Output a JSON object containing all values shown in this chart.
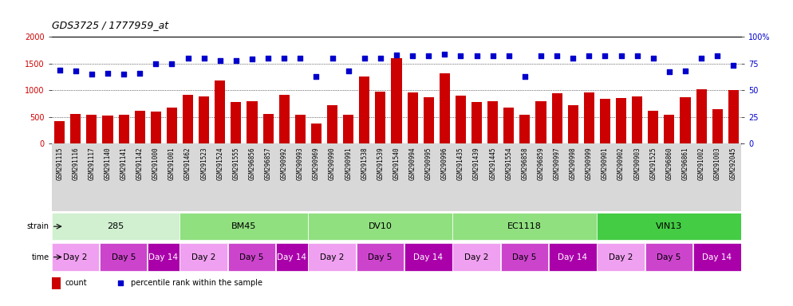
{
  "title": "GDS3725 / 1777959_at",
  "samples": [
    "GSM291115",
    "GSM291116",
    "GSM291117",
    "GSM291140",
    "GSM291141",
    "GSM291142",
    "GSM291000",
    "GSM291001",
    "GSM291462",
    "GSM291523",
    "GSM291524",
    "GSM291555",
    "GSM296856",
    "GSM296857",
    "GSM290992",
    "GSM290993",
    "GSM290969",
    "GSM290990",
    "GSM290991",
    "GSM291538",
    "GSM291539",
    "GSM291540",
    "GSM290994",
    "GSM290995",
    "GSM290996",
    "GSM291435",
    "GSM291439",
    "GSM291445",
    "GSM291554",
    "GSM296858",
    "GSM296859",
    "GSM290997",
    "GSM290998",
    "GSM290999",
    "GSM290901",
    "GSM290902",
    "GSM290903",
    "GSM291525",
    "GSM296860",
    "GSM296861",
    "GSM291002",
    "GSM291003",
    "GSM292045"
  ],
  "counts": [
    430,
    560,
    540,
    530,
    540,
    610,
    600,
    670,
    920,
    880,
    1180,
    780,
    790,
    560,
    920,
    550,
    380,
    720,
    540,
    1260,
    980,
    1600,
    960,
    870,
    1320,
    900,
    780,
    800,
    670,
    550,
    800,
    940,
    720,
    960,
    840,
    860,
    880,
    620,
    540,
    870,
    1020,
    650,
    1000
  ],
  "percentile_ranks": [
    69,
    68,
    65,
    66,
    65,
    66,
    75,
    75,
    80,
    80,
    78,
    78,
    79,
    80,
    80,
    80,
    63,
    80,
    68,
    80,
    80,
    83,
    82,
    82,
    84,
    82,
    82,
    82,
    82,
    63,
    82,
    82,
    80,
    82,
    82,
    82,
    82,
    80,
    67,
    68,
    80,
    82,
    73
  ],
  "strains": [
    {
      "label": "285",
      "start": 0,
      "end": 8,
      "color": "#d0f0d0"
    },
    {
      "label": "BM45",
      "start": 8,
      "end": 16,
      "color": "#90e080"
    },
    {
      "label": "DV10",
      "start": 16,
      "end": 25,
      "color": "#90e080"
    },
    {
      "label": "EC1118",
      "start": 25,
      "end": 34,
      "color": "#90e080"
    },
    {
      "label": "VIN13",
      "start": 34,
      "end": 43,
      "color": "#44cc44"
    }
  ],
  "time_groups": [
    {
      "label": "Day 2",
      "start": 0,
      "end": 3,
      "color": "#f0a0f0"
    },
    {
      "label": "Day 5",
      "start": 3,
      "end": 6,
      "color": "#cc44cc"
    },
    {
      "label": "Day 14",
      "start": 6,
      "end": 8,
      "color": "#aa00aa"
    },
    {
      "label": "Day 2",
      "start": 8,
      "end": 11,
      "color": "#f0a0f0"
    },
    {
      "label": "Day 5",
      "start": 11,
      "end": 14,
      "color": "#cc44cc"
    },
    {
      "label": "Day 14",
      "start": 14,
      "end": 16,
      "color": "#aa00aa"
    },
    {
      "label": "Day 2",
      "start": 16,
      "end": 19,
      "color": "#f0a0f0"
    },
    {
      "label": "Day 5",
      "start": 19,
      "end": 22,
      "color": "#cc44cc"
    },
    {
      "label": "Day 14",
      "start": 22,
      "end": 25,
      "color": "#aa00aa"
    },
    {
      "label": "Day 2",
      "start": 25,
      "end": 28,
      "color": "#f0a0f0"
    },
    {
      "label": "Day 5",
      "start": 28,
      "end": 31,
      "color": "#cc44cc"
    },
    {
      "label": "Day 14",
      "start": 31,
      "end": 34,
      "color": "#aa00aa"
    },
    {
      "label": "Day 2",
      "start": 34,
      "end": 37,
      "color": "#f0a0f0"
    },
    {
      "label": "Day 5",
      "start": 37,
      "end": 40,
      "color": "#cc44cc"
    },
    {
      "label": "Day 14",
      "start": 40,
      "end": 43,
      "color": "#aa00aa"
    }
  ],
  "bar_color": "#cc0000",
  "dot_color": "#0000cc",
  "ylim_left": [
    0,
    2000
  ],
  "ylim_right": [
    0,
    100
  ],
  "yticks_left": [
    0,
    500,
    1000,
    1500,
    2000
  ],
  "yticks_right": [
    0,
    25,
    50,
    75,
    100
  ],
  "background_color": "#ffffff",
  "plot_bg_color": "#ffffff",
  "xtick_bg_color": "#d8d8d8",
  "grid_color": "#000000",
  "title_fontsize": 9,
  "tick_fontsize": 5.5,
  "label_fontsize": 7,
  "annotation_fontsize": 8
}
